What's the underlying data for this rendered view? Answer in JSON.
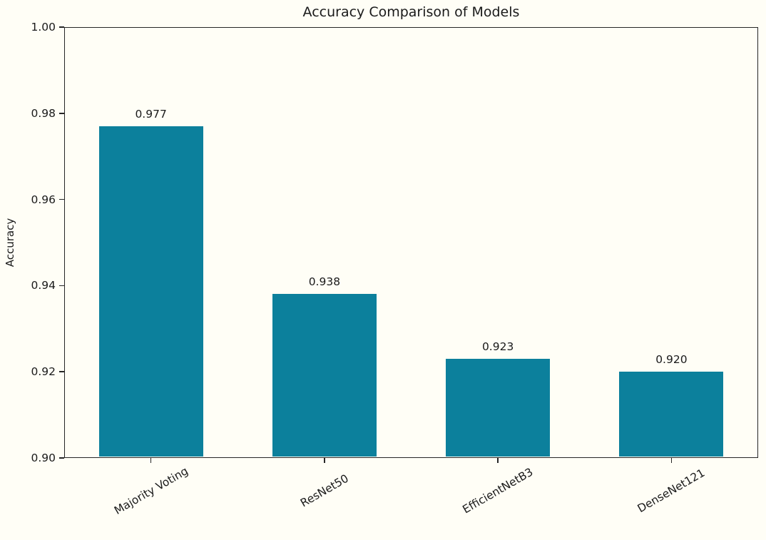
{
  "chart_data": {
    "type": "bar",
    "title": "Accuracy Comparison of Models",
    "xlabel": "",
    "ylabel": "Accuracy",
    "categories": [
      "Majority Voting",
      "ResNet50",
      "EfficientNetB3",
      "DenseNet121"
    ],
    "values": [
      0.977,
      0.938,
      0.923,
      0.92
    ],
    "bar_labels": [
      "0.977",
      "0.938",
      "0.923",
      "0.920"
    ],
    "ylim": [
      0.9,
      1.0
    ],
    "yticks": [
      0.9,
      0.92,
      0.94,
      0.96,
      0.98,
      1.0
    ],
    "ytick_labels": [
      "0.90",
      "0.92",
      "0.94",
      "0.96",
      "0.98",
      "1.00"
    ],
    "bar_width_fraction": 0.6,
    "x_label_rotation_deg": 30,
    "grid": false,
    "legend": null,
    "bar_color": "#0c809c",
    "background_color": "#fffef6",
    "axis_color": "#262626",
    "text_color": "#1a1a1a"
  }
}
